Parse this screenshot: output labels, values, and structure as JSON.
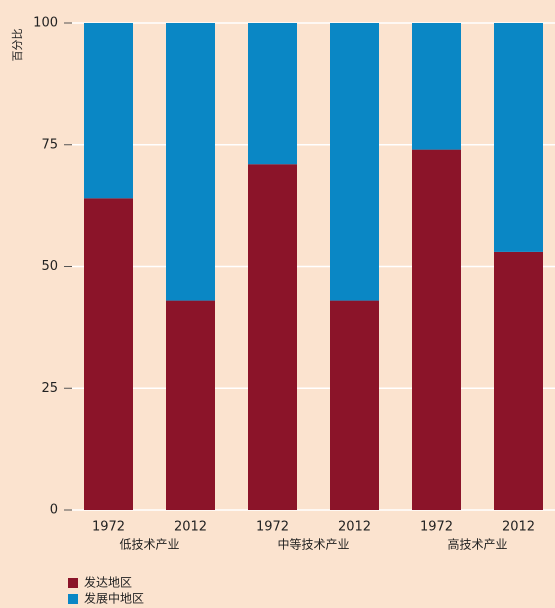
{
  "chart_data": {
    "type": "stacked_bar",
    "y_label": "百分比",
    "categories": [
      "1972",
      "2012",
      "1972",
      "2012",
      "1972",
      "2012"
    ],
    "groups": [
      "低技术产业",
      "中等技术产业",
      "高技术产业"
    ],
    "series": [
      {
        "name": "发达地区",
        "color": "#8b1429",
        "values": [
          64,
          43,
          71,
          43,
          74,
          53
        ]
      },
      {
        "name": "发展中地区",
        "color": "#0a87c5",
        "values": [
          36,
          57,
          29,
          57,
          26,
          47
        ]
      }
    ],
    "ylim": [
      0,
      100
    ],
    "yticks": [
      0,
      25,
      50,
      75,
      100
    ],
    "grid": true
  }
}
